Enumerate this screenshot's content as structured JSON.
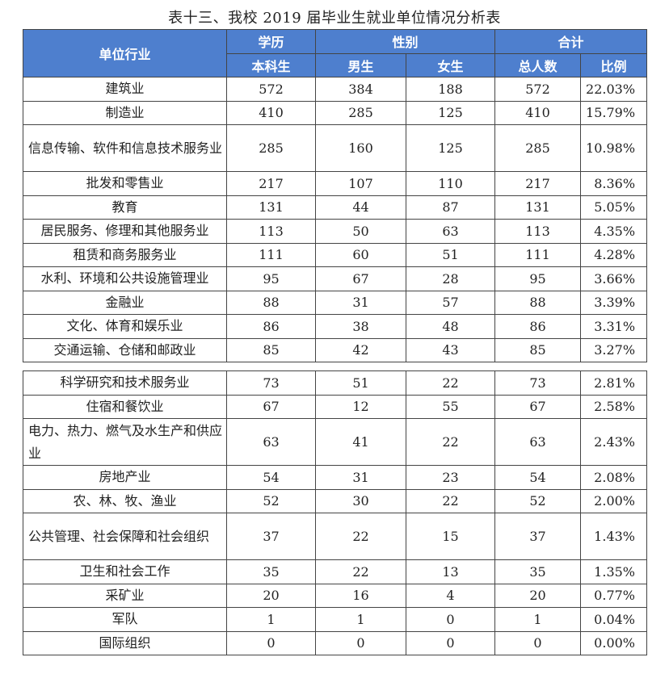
{
  "caption": "表十三、我校 2019 届毕业生就业单位情况分析表",
  "headers": {
    "industry": "单位行业",
    "education": "学历",
    "gender": "性别",
    "total_group": "合计",
    "bachelor": "本科生",
    "male": "男生",
    "female": "女生",
    "total": "总人数",
    "ratio": "比例"
  },
  "rows_a": [
    {
      "industry": "建筑业",
      "bachelor": "572",
      "male": "384",
      "female": "188",
      "total": "572",
      "ratio": "22.03%"
    },
    {
      "industry": "制造业",
      "bachelor": "410",
      "male": "285",
      "female": "125",
      "total": "410",
      "ratio": "15.79%"
    },
    {
      "industry": "信息传输、软件和信息技术服务业",
      "bachelor": "285",
      "male": "160",
      "female": "125",
      "total": "285",
      "ratio": "10.98%"
    },
    {
      "industry": "批发和零售业",
      "bachelor": "217",
      "male": "107",
      "female": "110",
      "total": "217",
      "ratio": "8.36%"
    },
    {
      "industry": "教育",
      "bachelor": "131",
      "male": "44",
      "female": "87",
      "total": "131",
      "ratio": "5.05%"
    },
    {
      "industry": "居民服务、修理和其他服务业",
      "bachelor": "113",
      "male": "50",
      "female": "63",
      "total": "113",
      "ratio": "4.35%"
    },
    {
      "industry": "租赁和商务服务业",
      "bachelor": "111",
      "male": "60",
      "female": "51",
      "total": "111",
      "ratio": "4.28%"
    },
    {
      "industry": "水利、环境和公共设施管理业",
      "bachelor": "95",
      "male": "67",
      "female": "28",
      "total": "95",
      "ratio": "3.66%"
    },
    {
      "industry": "金融业",
      "bachelor": "88",
      "male": "31",
      "female": "57",
      "total": "88",
      "ratio": "3.39%"
    },
    {
      "industry": "文化、体育和娱乐业",
      "bachelor": "86",
      "male": "38",
      "female": "48",
      "total": "86",
      "ratio": "3.31%"
    },
    {
      "industry": "交通运输、仓储和邮政业",
      "bachelor": "85",
      "male": "42",
      "female": "43",
      "total": "85",
      "ratio": "3.27%"
    }
  ],
  "rows_b": [
    {
      "industry": "科学研究和技术服务业",
      "bachelor": "73",
      "male": "51",
      "female": "22",
      "total": "73",
      "ratio": "2.81%"
    },
    {
      "industry": "住宿和餐饮业",
      "bachelor": "67",
      "male": "12",
      "female": "55",
      "total": "67",
      "ratio": "2.58%"
    },
    {
      "industry": "电力、热力、燃气及水生产和供应业",
      "bachelor": "63",
      "male": "41",
      "female": "22",
      "total": "63",
      "ratio": "2.43%"
    },
    {
      "industry": "房地产业",
      "bachelor": "54",
      "male": "31",
      "female": "23",
      "total": "54",
      "ratio": "2.08%"
    },
    {
      "industry": "农、林、牧、渔业",
      "bachelor": "52",
      "male": "30",
      "female": "22",
      "total": "52",
      "ratio": "2.00%"
    },
    {
      "industry": "公共管理、社会保障和社会组织",
      "bachelor": "37",
      "male": "22",
      "female": "15",
      "total": "37",
      "ratio": "1.43%"
    },
    {
      "industry": "卫生和社会工作",
      "bachelor": "35",
      "male": "22",
      "female": "13",
      "total": "35",
      "ratio": "1.35%"
    },
    {
      "industry": "采矿业",
      "bachelor": "20",
      "male": "16",
      "female": "4",
      "total": "20",
      "ratio": "0.77%"
    },
    {
      "industry": "军队",
      "bachelor": "1",
      "male": "1",
      "female": "0",
      "total": "1",
      "ratio": "0.04%"
    },
    {
      "industry": "国际组织",
      "bachelor": "0",
      "male": "0",
      "female": "0",
      "total": "0",
      "ratio": "0.00%"
    }
  ]
}
